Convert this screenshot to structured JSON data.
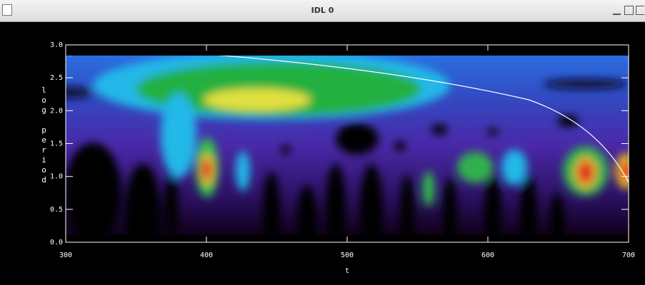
{
  "window": {
    "title": "IDL 0"
  },
  "chart_data": {
    "type": "heatmap",
    "xlabel": "t",
    "ylabel": "log period",
    "xlim": [
      300,
      700
    ],
    "ylim": [
      0,
      3
    ],
    "xticks": [
      300,
      400,
      500,
      600,
      700
    ],
    "yticks": [
      {
        "value": 0,
        "label": "0.0"
      },
      0.5,
      {
        "value": 1,
        "label": "1.0"
      },
      1.5,
      {
        "value": 2,
        "label": "2.0"
      },
      2.5,
      {
        "value": 3,
        "label": "3.0"
      }
    ]
  }
}
